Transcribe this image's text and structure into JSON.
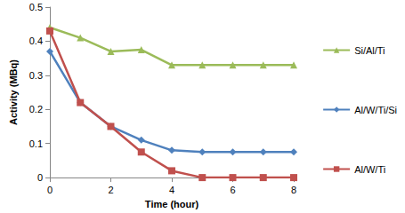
{
  "chart_data": {
    "type": "line",
    "xlabel": "Time (hour)",
    "ylabel": "Activity (MBq)",
    "x": [
      0,
      1,
      2,
      3,
      4,
      5,
      6,
      7,
      8
    ],
    "series": [
      {
        "name": "Si/Al/Ti",
        "color": "#9BBB59",
        "marker": "triangle",
        "values": [
          0.44,
          0.41,
          0.37,
          0.375,
          0.33,
          0.33,
          0.33,
          0.33,
          0.33
        ]
      },
      {
        "name": "Al/W/Ti/Si",
        "color": "#4F81BD",
        "marker": "diamond",
        "values": [
          0.37,
          0.22,
          0.15,
          0.11,
          0.08,
          0.075,
          0.075,
          0.075,
          0.075
        ]
      },
      {
        "name": "Al/W/Ti",
        "color": "#C0504D",
        "marker": "square",
        "values": [
          0.43,
          0.22,
          0.15,
          0.075,
          0.02,
          0,
          0,
          0,
          0
        ]
      }
    ],
    "xlim": [
      0,
      8
    ],
    "xticks": [
      0,
      2,
      4,
      6,
      8
    ],
    "ylim": [
      0,
      0.5
    ],
    "yticks": [
      0,
      0.1,
      0.2,
      0.3,
      0.4,
      0.5
    ],
    "grid": false,
    "legend": "right"
  }
}
